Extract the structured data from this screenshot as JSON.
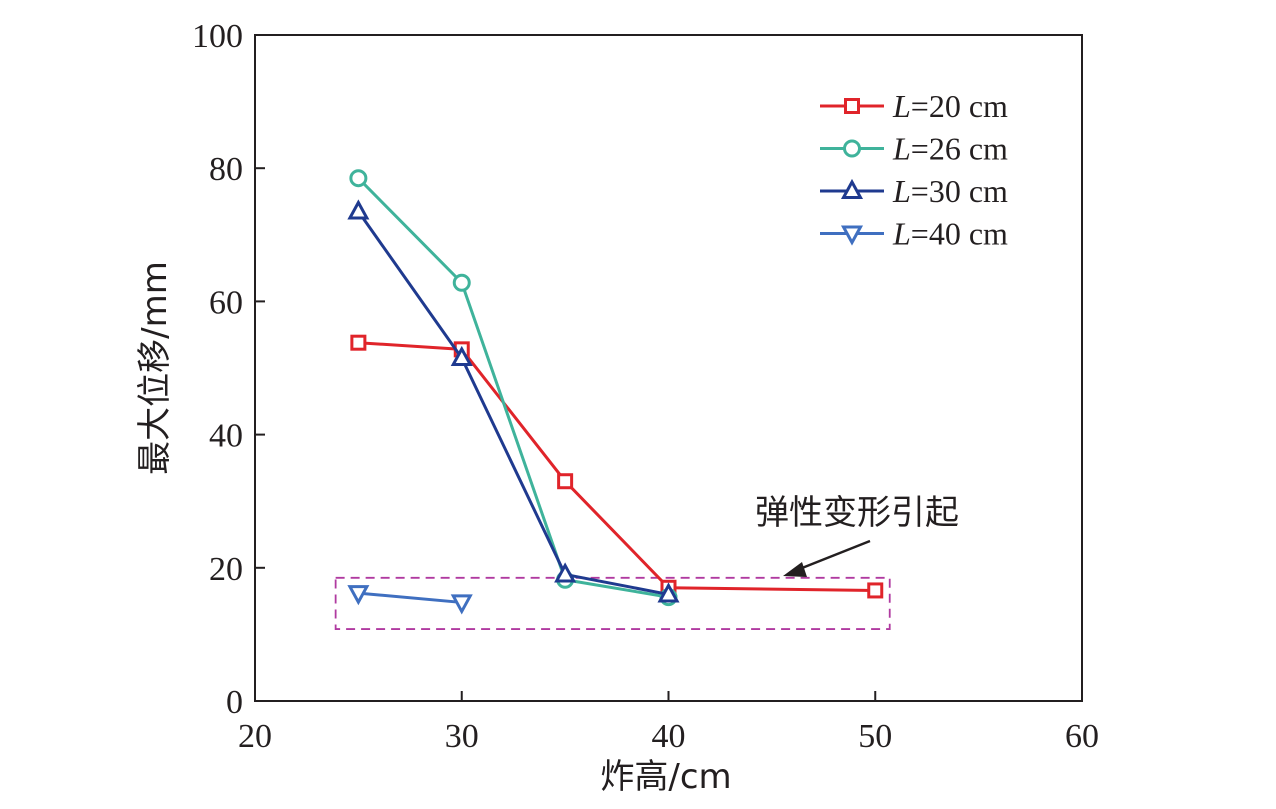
{
  "chart_data": {
    "type": "line",
    "title": "",
    "xlabel": "炸高/cm",
    "ylabel": "最大位移/mm",
    "xlim": [
      20,
      60
    ],
    "ylim": [
      0,
      100
    ],
    "x_ticks": [
      20,
      30,
      40,
      50,
      60
    ],
    "y_ticks": [
      0,
      20,
      40,
      60,
      80,
      100
    ],
    "grid": false,
    "legend_position": "top-right",
    "series": [
      {
        "name": "L=20 cm",
        "name_italic": "L",
        "name_rest": "=20 cm",
        "color": "#e0242a",
        "marker": "square",
        "points": [
          {
            "x": 25,
            "y": 53.8
          },
          {
            "x": 30,
            "y": 52.8
          },
          {
            "x": 35,
            "y": 33.0
          },
          {
            "x": 40,
            "y": 17.0
          },
          {
            "x": 50,
            "y": 16.6
          }
        ]
      },
      {
        "name": "L=26 cm",
        "name_italic": "L",
        "name_rest": "=26 cm",
        "color": "#3fb39b",
        "marker": "circle",
        "points": [
          {
            "x": 25,
            "y": 78.5
          },
          {
            "x": 30,
            "y": 62.8
          },
          {
            "x": 35,
            "y": 18.2
          },
          {
            "x": 40,
            "y": 15.6
          }
        ]
      },
      {
        "name": "L=30 cm",
        "name_italic": "L",
        "name_rest": "=30 cm",
        "color": "#1f3a8f",
        "marker": "triangle-up",
        "points": [
          {
            "x": 25,
            "y": 73.5
          },
          {
            "x": 30,
            "y": 51.5
          },
          {
            "x": 35,
            "y": 19.0
          },
          {
            "x": 40,
            "y": 16.0
          }
        ]
      },
      {
        "name": "L=40 cm",
        "name_italic": "L",
        "name_rest": "=40 cm",
        "color": "#3f6fc0",
        "marker": "triangle-down",
        "points": [
          {
            "x": 25,
            "y": 16.2
          },
          {
            "x": 30,
            "y": 14.8
          }
        ]
      }
    ],
    "annotation": {
      "text": "弹性变形引起",
      "box_color": "#b03aa0"
    }
  }
}
